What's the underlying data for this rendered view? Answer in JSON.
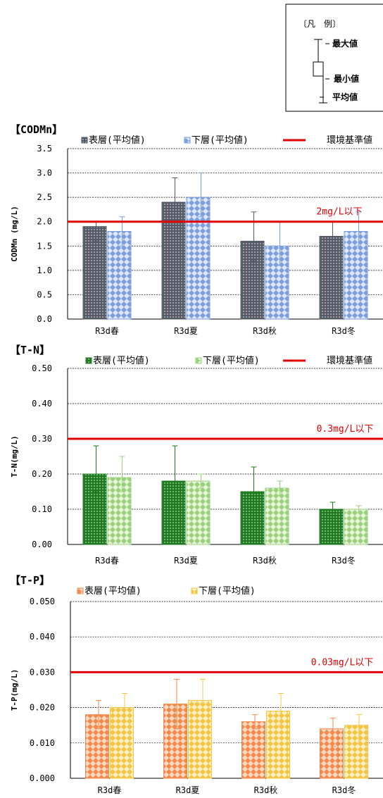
{
  "legend_box": {
    "title": "〔凡　例〕",
    "max_label": "最大値",
    "min_label": "最小値",
    "avg_label": "平均値"
  },
  "chart_data": [
    {
      "type": "bar",
      "title": "【CODMn】",
      "ylabel": "CODMn (mg/L)",
      "categories": [
        "R3d春",
        "R3d夏",
        "R3d秋",
        "R3d冬"
      ],
      "ylim": [
        0,
        3.5
      ],
      "yticks": [
        "0.0",
        "0.5",
        "1.0",
        "1.5",
        "2.0",
        "2.5",
        "3.0",
        "3.5"
      ],
      "grid": true,
      "series": [
        {
          "name": "表層(平均値)",
          "color": "#545a66",
          "values": [
            1.9,
            2.4,
            1.6,
            1.7
          ],
          "min": [
            1.6,
            2.0,
            1.2,
            1.4
          ],
          "max": [
            2.0,
            2.9,
            2.2,
            2.0
          ]
        },
        {
          "name": "下層(平均値)",
          "color": "#7a9ee0",
          "values": [
            1.8,
            2.5,
            1.5,
            1.8
          ],
          "min": [
            1.5,
            2.1,
            1.1,
            1.5
          ],
          "max": [
            2.1,
            3.0,
            2.0,
            2.2
          ]
        }
      ],
      "standard": {
        "name": "環境基準値",
        "value": 2.0,
        "label": "2mg/L以下",
        "color": "#e00000"
      }
    },
    {
      "type": "bar",
      "title": "【T-N】",
      "ylabel": "T-N(mg/L)",
      "categories": [
        "R3d春",
        "R3d夏",
        "R3d秋",
        "R3d冬"
      ],
      "ylim": [
        0,
        0.5
      ],
      "yticks": [
        "0.00",
        "0.10",
        "0.20",
        "0.30",
        "0.40",
        "0.50"
      ],
      "grid": true,
      "series": [
        {
          "name": "表層(平均値)",
          "color": "#1e7a1e",
          "values": [
            0.2,
            0.18,
            0.15,
            0.1
          ],
          "min": [
            0.15,
            0.12,
            0.1,
            0.08
          ],
          "max": [
            0.28,
            0.28,
            0.22,
            0.12
          ]
        },
        {
          "name": "下層(平均値)",
          "color": "#9ad07a",
          "values": [
            0.19,
            0.18,
            0.16,
            0.1
          ],
          "min": [
            0.15,
            0.16,
            0.14,
            0.09
          ],
          "max": [
            0.25,
            0.2,
            0.18,
            0.11
          ]
        }
      ],
      "standard": {
        "name": "環境基準値",
        "value": 0.3,
        "label": "0.3mg/L以下",
        "color": "#e00000"
      }
    },
    {
      "type": "bar",
      "title": "【T-P】",
      "ylabel": "T-P(mg/L)",
      "categories": [
        "R3d春",
        "R3d夏",
        "R3d秋",
        "R3d冬"
      ],
      "ylim": [
        0,
        0.05
      ],
      "yticks": [
        "0.000",
        "0.010",
        "0.020",
        "0.030",
        "0.040",
        "0.050"
      ],
      "grid": true,
      "series": [
        {
          "name": "表層(平均値)",
          "color": "#f08a4b",
          "values": [
            0.018,
            0.021,
            0.016,
            0.014
          ],
          "min": [
            0.014,
            0.014,
            0.014,
            0.009
          ],
          "max": [
            0.022,
            0.028,
            0.018,
            0.017
          ]
        },
        {
          "name": "下層(平均値)",
          "color": "#f5c542",
          "values": [
            0.02,
            0.022,
            0.019,
            0.015
          ],
          "min": [
            0.016,
            0.016,
            0.015,
            0.01
          ],
          "max": [
            0.024,
            0.028,
            0.024,
            0.018
          ]
        }
      ],
      "standard": {
        "name": "",
        "value": 0.03,
        "label": "0.03mg/L以下",
        "color": "#e00000"
      }
    }
  ]
}
